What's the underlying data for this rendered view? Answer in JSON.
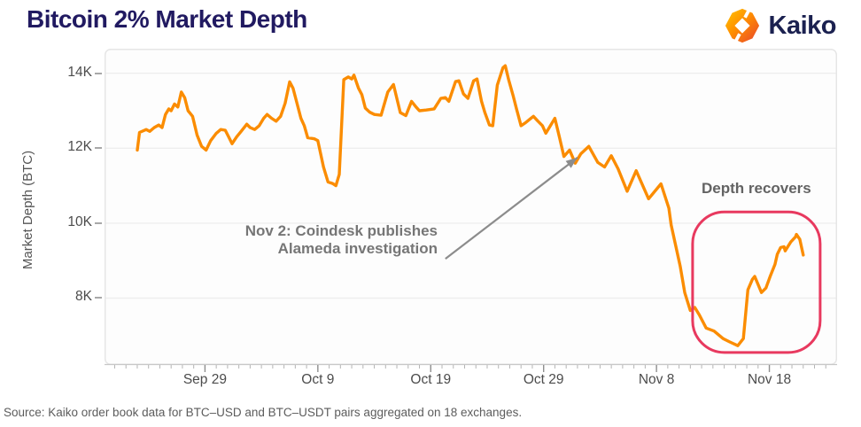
{
  "header": {
    "title": "Bitcoin 2% Market Depth",
    "logo_text": "Kaiko"
  },
  "annotation": {
    "line1": "Nov 2: Coindesk publishes",
    "line2": "Alameda investigation"
  },
  "recovery_label": "Depth recovers",
  "source_note": "Source: Kaiko order book data for BTC–USD and BTC–USDT pairs aggregated on 18 exchanges.",
  "colors": {
    "line": "#FB8C00",
    "title_navy": "#211a61",
    "highlight_red": "#E8395F",
    "arrow_gray": "#8c8c8c",
    "grid": "#eeeeee",
    "logo_orange_light": "#FFB300",
    "logo_orange_dark": "#E64A19"
  },
  "chart_data": {
    "type": "line",
    "title": "Bitcoin 2% Market Depth",
    "xlabel": "",
    "ylabel": "Market Depth (BTC)",
    "grid": "horizontal",
    "x_unit": "days since Sep 23",
    "xlim": [
      -2.9,
      62
    ],
    "ylim": [
      6215,
      14655
    ],
    "x_ticks": [
      {
        "day": 6,
        "label": "Sep 29"
      },
      {
        "day": 16,
        "label": "Oct 9"
      },
      {
        "day": 26,
        "label": "Oct 19"
      },
      {
        "day": 36,
        "label": "Oct 29"
      },
      {
        "day": 46,
        "label": "Nov 8"
      },
      {
        "day": 56,
        "label": "Nov 18"
      }
    ],
    "y_ticks": [
      {
        "value": 8000,
        "label": "8K"
      },
      {
        "value": 10000,
        "label": "10K"
      },
      {
        "value": 12000,
        "label": "12K"
      },
      {
        "value": 14000,
        "label": "14K"
      }
    ],
    "series": [
      {
        "name": "Bitcoin 2% market depth (BTC)",
        "color": "#FB8C00",
        "points": [
          [
            0,
            11950
          ],
          [
            0.2,
            12420
          ],
          [
            0.8,
            12500
          ],
          [
            1.1,
            12450
          ],
          [
            1.5,
            12550
          ],
          [
            1.9,
            12620
          ],
          [
            2.2,
            12550
          ],
          [
            2.5,
            12900
          ],
          [
            2.8,
            13050
          ],
          [
            3.0,
            13000
          ],
          [
            3.3,
            13180
          ],
          [
            3.6,
            13100
          ],
          [
            3.9,
            13500
          ],
          [
            4.2,
            13350
          ],
          [
            4.5,
            13000
          ],
          [
            4.9,
            12850
          ],
          [
            5.3,
            12350
          ],
          [
            5.7,
            12050
          ],
          [
            6.1,
            11950
          ],
          [
            6.5,
            12200
          ],
          [
            7.0,
            12400
          ],
          [
            7.4,
            12500
          ],
          [
            7.8,
            12480
          ],
          [
            8.1,
            12300
          ],
          [
            8.4,
            12120
          ],
          [
            8.8,
            12300
          ],
          [
            9.2,
            12450
          ],
          [
            9.7,
            12640
          ],
          [
            10.0,
            12550
          ],
          [
            10.4,
            12500
          ],
          [
            10.8,
            12600
          ],
          [
            11.2,
            12800
          ],
          [
            11.5,
            12900
          ],
          [
            11.9,
            12800
          ],
          [
            12.3,
            12720
          ],
          [
            12.7,
            12850
          ],
          [
            13.1,
            13200
          ],
          [
            13.5,
            13770
          ],
          [
            13.8,
            13600
          ],
          [
            14.1,
            13260
          ],
          [
            14.5,
            12800
          ],
          [
            14.8,
            12600
          ],
          [
            15.1,
            12280
          ],
          [
            15.7,
            12250
          ],
          [
            16.0,
            12200
          ],
          [
            16.5,
            11500
          ],
          [
            16.9,
            11100
          ],
          [
            17.3,
            11060
          ],
          [
            17.6,
            11000
          ],
          [
            17.9,
            11300
          ],
          [
            18.3,
            13830
          ],
          [
            18.7,
            13900
          ],
          [
            19.0,
            13850
          ],
          [
            19.2,
            13950
          ],
          [
            19.6,
            13600
          ],
          [
            19.9,
            13430
          ],
          [
            20.2,
            13070
          ],
          [
            20.6,
            12960
          ],
          [
            21.0,
            12900
          ],
          [
            21.6,
            12880
          ],
          [
            22.2,
            13500
          ],
          [
            22.7,
            13700
          ],
          [
            23.3,
            12950
          ],
          [
            23.8,
            12870
          ],
          [
            24.3,
            13250
          ],
          [
            24.7,
            13100
          ],
          [
            25.0,
            13000
          ],
          [
            25.6,
            13020
          ],
          [
            26.3,
            13050
          ],
          [
            26.9,
            13330
          ],
          [
            27.3,
            13350
          ],
          [
            27.6,
            13250
          ],
          [
            28.2,
            13780
          ],
          [
            28.5,
            13800
          ],
          [
            28.9,
            13450
          ],
          [
            29.3,
            13330
          ],
          [
            29.8,
            13800
          ],
          [
            30.1,
            13850
          ],
          [
            30.5,
            13250
          ],
          [
            30.8,
            12950
          ],
          [
            31.2,
            12620
          ],
          [
            31.5,
            12600
          ],
          [
            31.9,
            13680
          ],
          [
            32.4,
            14150
          ],
          [
            32.6,
            14200
          ],
          [
            32.9,
            13830
          ],
          [
            33.3,
            13400
          ],
          [
            33.6,
            13050
          ],
          [
            34.0,
            12600
          ],
          [
            34.4,
            12680
          ],
          [
            34.8,
            12780
          ],
          [
            35.1,
            12850
          ],
          [
            35.5,
            12720
          ],
          [
            35.9,
            12600
          ],
          [
            36.2,
            12400
          ],
          [
            36.5,
            12550
          ],
          [
            37.0,
            12800
          ],
          [
            37.4,
            12300
          ],
          [
            37.8,
            11780
          ],
          [
            38.3,
            11950
          ],
          [
            38.8,
            11600
          ],
          [
            39.3,
            11850
          ],
          [
            40.0,
            12050
          ],
          [
            40.8,
            11620
          ],
          [
            41.4,
            11500
          ],
          [
            42.0,
            11800
          ],
          [
            42.6,
            11450
          ],
          [
            43.4,
            10850
          ],
          [
            44.2,
            11400
          ],
          [
            45.3,
            10650
          ],
          [
            46.4,
            11050
          ],
          [
            47.1,
            10400
          ],
          [
            47.3,
            9950
          ],
          [
            47.7,
            9400
          ],
          [
            48.1,
            8850
          ],
          [
            48.5,
            8150
          ],
          [
            49.0,
            7670
          ],
          [
            49.4,
            7750
          ],
          [
            49.8,
            7550
          ],
          [
            50.4,
            7200
          ],
          [
            51.1,
            7120
          ],
          [
            51.9,
            6920
          ],
          [
            52.5,
            6830
          ],
          [
            53.2,
            6730
          ],
          [
            53.7,
            6920
          ],
          [
            54.1,
            8220
          ],
          [
            54.5,
            8500
          ],
          [
            54.7,
            8580
          ],
          [
            55.3,
            8150
          ],
          [
            55.7,
            8270
          ],
          [
            56.1,
            8600
          ],
          [
            56.5,
            8900
          ],
          [
            56.7,
            9170
          ],
          [
            57.0,
            9350
          ],
          [
            57.3,
            9370
          ],
          [
            57.4,
            9260
          ],
          [
            57.9,
            9500
          ],
          [
            58.3,
            9630
          ],
          [
            58.4,
            9700
          ],
          [
            58.7,
            9570
          ],
          [
            59.0,
            9150
          ]
        ]
      }
    ],
    "annotation_arrow": {
      "from": {
        "day": 27.3,
        "value": 9050
      },
      "to": {
        "day": 39.0,
        "value": 11750
      }
    },
    "highlight_box": {
      "label": "Depth recovers",
      "day_range": [
        49.2,
        60.5
      ],
      "value_range": [
        6550,
        10300
      ],
      "color": "#E8395F"
    }
  }
}
